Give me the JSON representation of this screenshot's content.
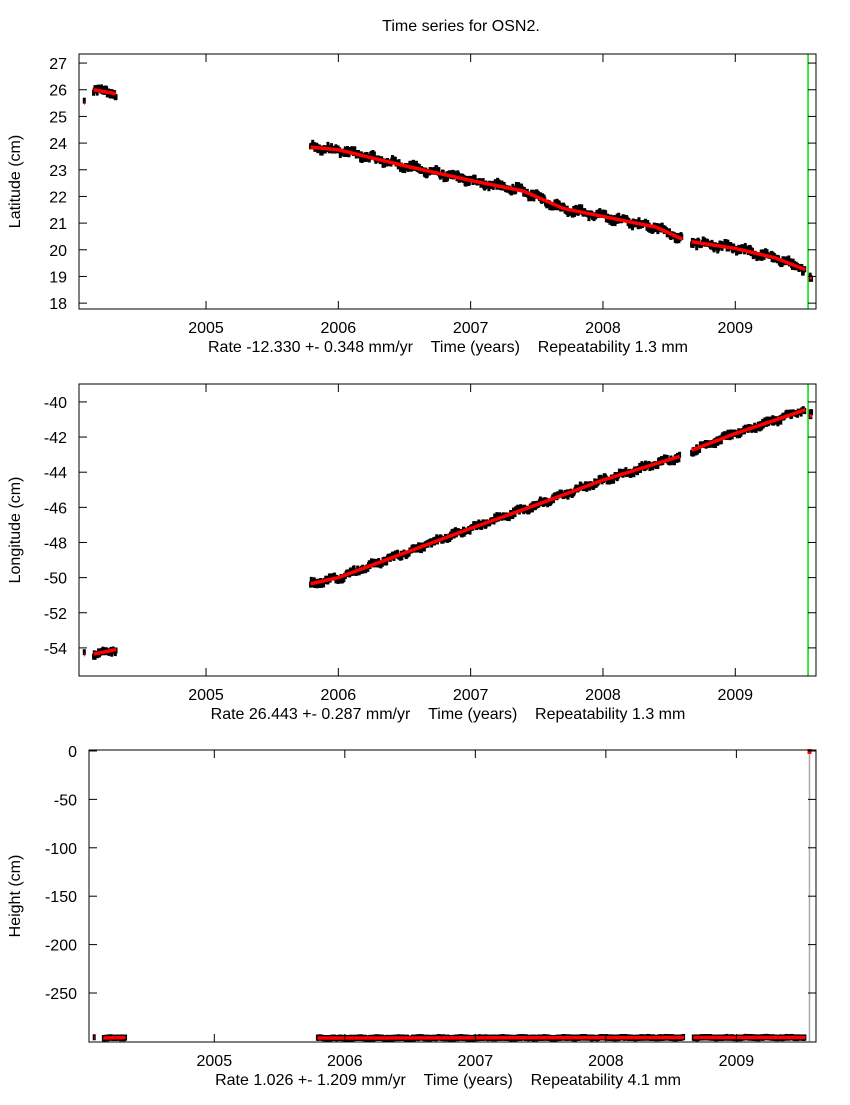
{
  "title": "Time series for OSN2.",
  "colors": {
    "data": "#000000",
    "model": "#ff0000",
    "marker": "#00dd00",
    "outlier_line": "#aaaaaa"
  },
  "chart_data": [
    {
      "type": "scatter",
      "ylabel": "Latitude (cm)",
      "xlabel": "Time (years)",
      "rate_text": "Rate -12.330 +- 0.348 mm/yr",
      "repeat_text": "Repeatability 1.3 mm",
      "xlim": [
        2004.04,
        2009.61
      ],
      "ylim": [
        17.78,
        27.34
      ],
      "xticks": [
        2005,
        2006,
        2007,
        2008,
        2009
      ],
      "yticks": [
        18,
        19,
        20,
        21,
        22,
        23,
        24,
        25,
        26,
        27
      ],
      "marker_x": 2009.55,
      "noise": 0.12,
      "segments": [
        [
          [
            2004.08,
            25.5
          ],
          [
            2004.085,
            25.5
          ]
        ],
        [
          [
            2004.15,
            26.0
          ],
          [
            2004.32,
            25.85
          ]
        ],
        [
          [
            2005.79,
            23.85
          ],
          [
            2006.0,
            23.75
          ],
          [
            2006.5,
            23.15
          ],
          [
            2007.0,
            22.6
          ],
          [
            2007.4,
            22.2
          ],
          [
            2007.7,
            21.55
          ],
          [
            2008.0,
            21.25
          ],
          [
            2008.4,
            20.85
          ],
          [
            2008.6,
            20.4
          ]
        ],
        [
          [
            2008.67,
            20.3
          ],
          [
            2009.0,
            20.05
          ],
          [
            2009.3,
            19.7
          ],
          [
            2009.53,
            19.25
          ]
        ],
        [
          [
            2009.56,
            18.95
          ],
          [
            2009.58,
            18.95
          ]
        ]
      ]
    },
    {
      "type": "scatter",
      "ylabel": "Longitude (cm)",
      "xlabel": "Time (years)",
      "rate_text": "Rate 26.443 +- 0.287 mm/yr",
      "repeat_text": "Repeatability 1.3 mm",
      "xlim": [
        2004.04,
        2009.61
      ],
      "ylim": [
        -55.6,
        -38.98
      ],
      "xticks": [
        2005,
        2006,
        2007,
        2008,
        2009
      ],
      "yticks": [
        -54,
        -52,
        -50,
        -48,
        -46,
        -44,
        -42,
        -40
      ],
      "marker_x": 2009.55,
      "noise": 0.15,
      "segments": [
        [
          [
            2004.08,
            -54.4
          ],
          [
            2004.085,
            -54.4
          ]
        ],
        [
          [
            2004.15,
            -54.35
          ],
          [
            2004.32,
            -54.1
          ]
        ],
        [
          [
            2005.79,
            -50.35
          ],
          [
            2006.0,
            -50.0
          ],
          [
            2006.5,
            -48.6
          ],
          [
            2007.0,
            -47.2
          ],
          [
            2007.5,
            -45.85
          ],
          [
            2008.0,
            -44.45
          ],
          [
            2008.58,
            -43.1
          ]
        ],
        [
          [
            2008.67,
            -42.75
          ],
          [
            2009.0,
            -41.8
          ],
          [
            2009.53,
            -40.45
          ]
        ],
        [
          [
            2009.56,
            -40.8
          ],
          [
            2009.58,
            -40.8
          ]
        ]
      ]
    },
    {
      "type": "scatter",
      "ylabel": "Height (cm)",
      "xlabel": "Time (years)",
      "rate_text": "Rate 1.026 +- 1.209 mm/yr",
      "repeat_text": "Repeatability 4.1 mm",
      "xlim": [
        2004.04,
        2009.61
      ],
      "ylim": [
        -300.6,
        1
      ],
      "xticks": [
        2005,
        2006,
        2007,
        2008,
        2009
      ],
      "yticks": [
        -250,
        -200,
        -150,
        -100,
        -50,
        0
      ],
      "outlier": [
        2009.56,
        0
      ],
      "noise": 0.5,
      "segments": [
        [
          [
            2004.08,
            -296
          ],
          [
            2004.085,
            -296
          ]
        ],
        [
          [
            2004.15,
            -296.5
          ],
          [
            2004.32,
            -296
          ]
        ],
        [
          [
            2005.79,
            -296.5
          ],
          [
            2008.6,
            -296
          ]
        ],
        [
          [
            2008.67,
            -296
          ],
          [
            2009.53,
            -296
          ]
        ]
      ]
    }
  ]
}
